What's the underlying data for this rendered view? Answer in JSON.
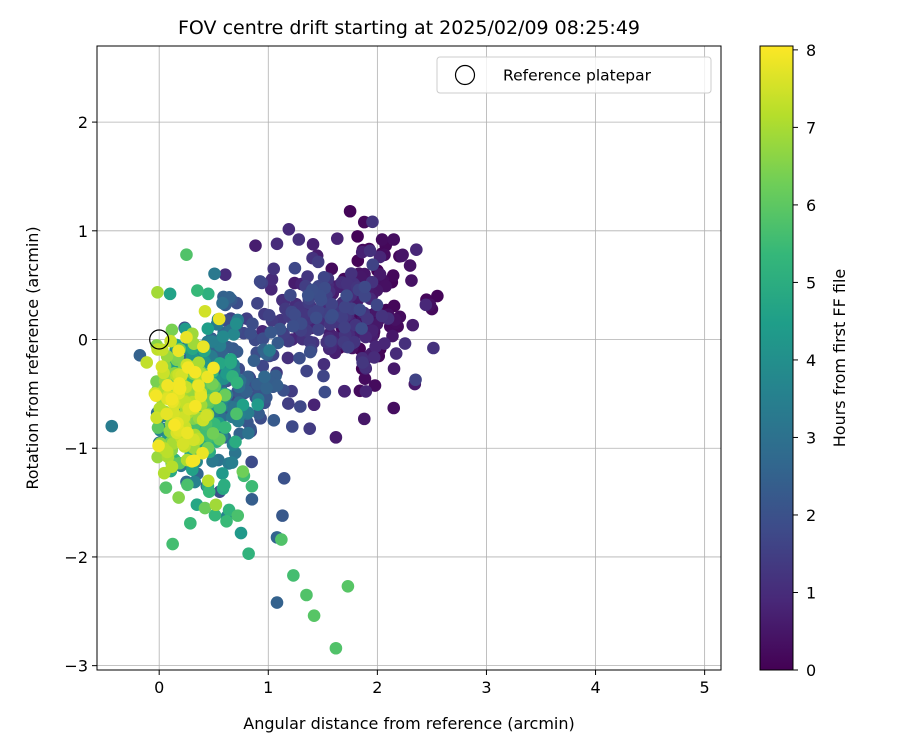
{
  "chart_data": {
    "type": "scatter",
    "title": "FOV centre drift starting at 2025/02/09 08:25:49",
    "xlabel": "Angular distance from reference (arcmin)",
    "ylabel": "Rotation from reference (arcmin)",
    "xlim": [
      -0.57,
      5.15
    ],
    "ylim": [
      -3.04,
      2.7
    ],
    "xticks": [
      0,
      1,
      2,
      3,
      4,
      5
    ],
    "yticks": [
      -3,
      -2,
      -1,
      0,
      1,
      2
    ],
    "grid": true,
    "colormap": "viridis",
    "colorbar": {
      "label": "Hours from first FF file",
      "range": [
        0,
        8.05
      ],
      "ticks": [
        0,
        1,
        2,
        3,
        4,
        5,
        6,
        7,
        8
      ]
    },
    "legend": {
      "placement": "top-right",
      "entries": [
        {
          "label": "Reference platepar",
          "marker": "open-circle",
          "x": 0,
          "y": 0
        }
      ]
    },
    "clusters": [
      {
        "hours": [
          0.0,
          0.6
        ],
        "center": [
          1.9,
          0.3
        ],
        "spread": [
          0.22,
          0.32
        ],
        "count": 90
      },
      {
        "hours": [
          0.6,
          1.3
        ],
        "center": [
          1.65,
          0.25
        ],
        "spread": [
          0.3,
          0.3
        ],
        "count": 110
      },
      {
        "hours": [
          1.3,
          2.0
        ],
        "center": [
          1.3,
          0.2
        ],
        "spread": [
          0.3,
          0.3
        ],
        "count": 70
      },
      {
        "hours": [
          1.6,
          2.6
        ],
        "center": [
          0.7,
          -0.35
        ],
        "spread": [
          0.25,
          0.35
        ],
        "count": 90
      },
      {
        "hours": [
          2.4,
          3.6
        ],
        "center": [
          0.45,
          -0.5
        ],
        "spread": [
          0.22,
          0.35
        ],
        "count": 110
      },
      {
        "hours": [
          3.5,
          4.8
        ],
        "center": [
          0.35,
          -0.5
        ],
        "spread": [
          0.2,
          0.35
        ],
        "count": 80
      },
      {
        "hours": [
          4.8,
          6.3
        ],
        "center": [
          0.35,
          -0.7
        ],
        "spread": [
          0.2,
          0.35
        ],
        "count": 90
      },
      {
        "hours": [
          6.3,
          8.0
        ],
        "center": [
          0.2,
          -0.55
        ],
        "spread": [
          0.14,
          0.28
        ],
        "count": 130
      }
    ],
    "points": [
      {
        "x": 1.75,
        "y": 1.18,
        "h": 0.1
      },
      {
        "x": 1.88,
        "y": 1.08,
        "h": 0.2
      },
      {
        "x": 2.55,
        "y": 0.4,
        "h": 0.1
      },
      {
        "x": 2.5,
        "y": 0.28,
        "h": 0.2
      },
      {
        "x": 2.15,
        "y": 0.92,
        "h": 0.3
      },
      {
        "x": 2.3,
        "y": 0.68,
        "h": 0.4
      },
      {
        "x": 2.15,
        "y": -0.63,
        "h": 0.3
      },
      {
        "x": 1.88,
        "y": -0.73,
        "h": 0.5
      },
      {
        "x": 1.62,
        "y": -0.9,
        "h": 0.6
      },
      {
        "x": 1.42,
        "y": -0.6,
        "h": 0.8
      },
      {
        "x": 2.35,
        "y": -0.37,
        "h": 1.6
      },
      {
        "x": 1.08,
        "y": 0.88,
        "h": 1.0
      },
      {
        "x": 1.28,
        "y": 0.92,
        "h": 1.1
      },
      {
        "x": 1.05,
        "y": 0.65,
        "h": 1.2
      },
      {
        "x": 1.22,
        "y": -0.8,
        "h": 1.8
      },
      {
        "x": 1.38,
        "y": -0.82,
        "h": 1.4
      },
      {
        "x": 0.0,
        "y": -0.95,
        "h": 3.0
      },
      {
        "x": 0.25,
        "y": -1.31,
        "h": 2.8
      },
      {
        "x": 0.85,
        "y": -1.47,
        "h": 2.4
      },
      {
        "x": 1.13,
        "y": -1.62,
        "h": 2.2
      },
      {
        "x": 1.08,
        "y": -1.82,
        "h": 2.6
      },
      {
        "x": 1.08,
        "y": -2.42,
        "h": 2.5
      },
      {
        "x": 0.62,
        "y": -1.63,
        "h": 3.6
      },
      {
        "x": 0.75,
        "y": -1.78,
        "h": 4.3
      },
      {
        "x": 1.12,
        "y": -1.84,
        "h": 5.8
      },
      {
        "x": 0.82,
        "y": -1.97,
        "h": 5.2
      },
      {
        "x": 0.85,
        "y": -1.35,
        "h": 5.5
      },
      {
        "x": 0.72,
        "y": -1.62,
        "h": 5.7
      },
      {
        "x": 1.23,
        "y": -2.17,
        "h": 5.6
      },
      {
        "x": 1.35,
        "y": -2.35,
        "h": 5.8
      },
      {
        "x": 1.73,
        "y": -2.27,
        "h": 5.9
      },
      {
        "x": 1.42,
        "y": -2.54,
        "h": 5.9
      },
      {
        "x": 1.62,
        "y": -2.84,
        "h": 5.8
      },
      {
        "x": 0.25,
        "y": 0.78,
        "h": 5.8
      },
      {
        "x": 0.35,
        "y": 0.45,
        "h": 5.4
      },
      {
        "x": 0.45,
        "y": 0.42,
        "h": 5.1
      },
      {
        "x": 0.1,
        "y": 0.42,
        "h": 4.6
      },
      {
        "x": 0.72,
        "y": 0.18,
        "h": 3.3
      },
      {
        "x": 0.42,
        "y": 0.26,
        "h": 7.5
      },
      {
        "x": 0.55,
        "y": 0.19,
        "h": 7.8
      },
      {
        "x": 0.3,
        "y": -1.12,
        "h": 7.9
      },
      {
        "x": 0.08,
        "y": -1.08,
        "h": 7.0
      },
      {
        "x": 0.42,
        "y": -1.55,
        "h": 6.2
      },
      {
        "x": 0.52,
        "y": -1.52,
        "h": 6.9
      },
      {
        "x": 0.45,
        "y": -1.3,
        "h": 7.2
      },
      {
        "x": 0.25,
        "y": 0.02,
        "h": 7.8
      }
    ]
  }
}
